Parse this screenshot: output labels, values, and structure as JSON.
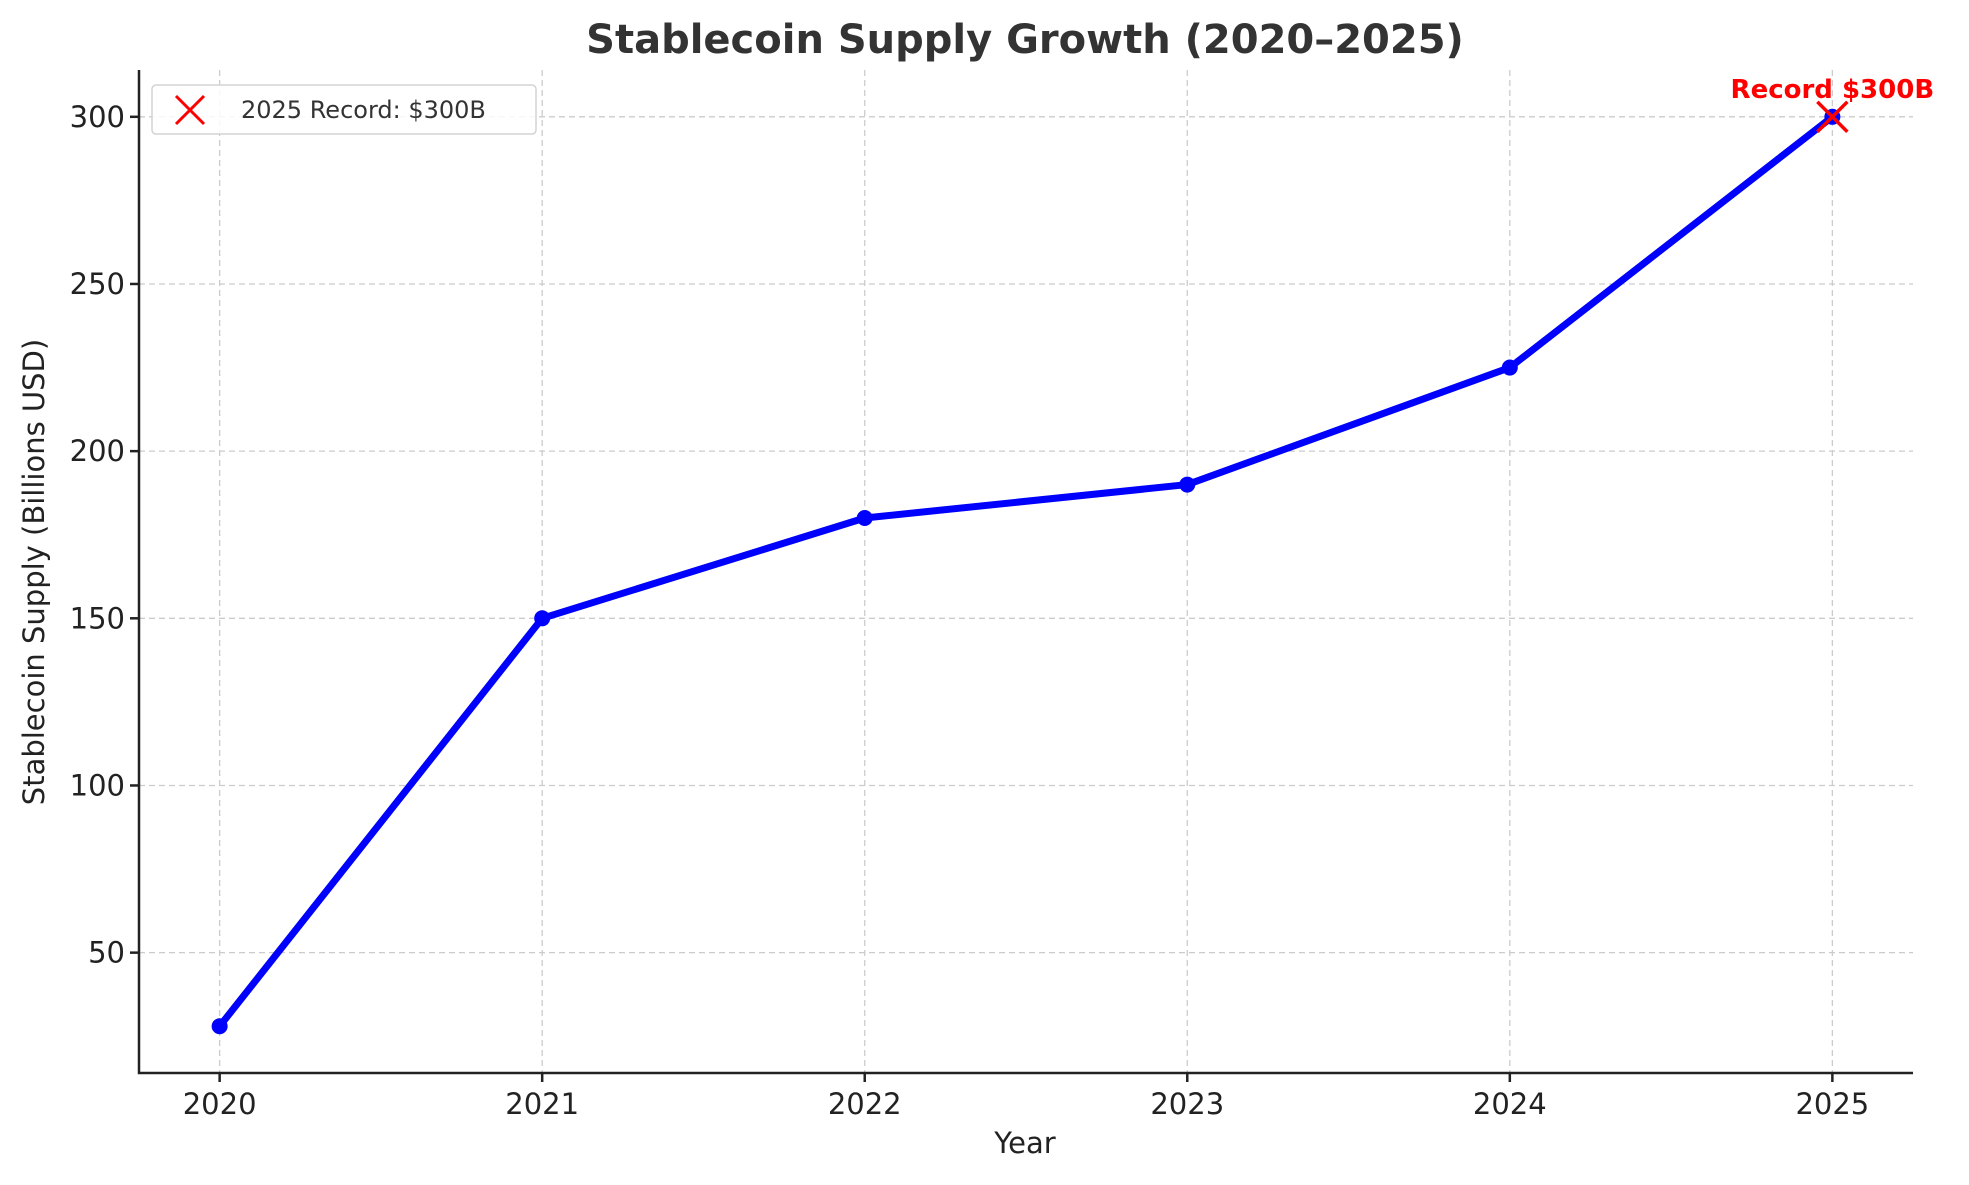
{
  "chart_data": {
    "type": "line",
    "title": "Stablecoin Supply Growth (2020–2025)",
    "xlabel": "Year",
    "ylabel": "Stablecoin Supply (Billions USD)",
    "categories": [
      "2020",
      "2021",
      "2022",
      "2023",
      "2024",
      "2025"
    ],
    "x": [
      2020,
      2021,
      2022,
      2023,
      2024,
      2025
    ],
    "series": [
      {
        "name": "Stablecoin Supply",
        "values": [
          28,
          150,
          180,
          190,
          225,
          300
        ],
        "color": "#0000ff"
      }
    ],
    "yticks": [
      50,
      100,
      150,
      200,
      250,
      300
    ],
    "ylim": [
      14,
      314
    ],
    "xlim": [
      2019.75,
      2025.25
    ],
    "grid": true,
    "legend": {
      "position": "upper left",
      "entries": [
        {
          "label": "2025 Record: $300B",
          "marker": "x",
          "color": "#ff0000"
        }
      ]
    },
    "annotations": [
      {
        "text": "Record $300B",
        "x": 2025,
        "y": 300,
        "color": "#ff0000",
        "bold": true
      }
    ],
    "highlight_point": {
      "x": 2025,
      "y": 300,
      "marker": "x",
      "color": "#ff0000"
    }
  }
}
